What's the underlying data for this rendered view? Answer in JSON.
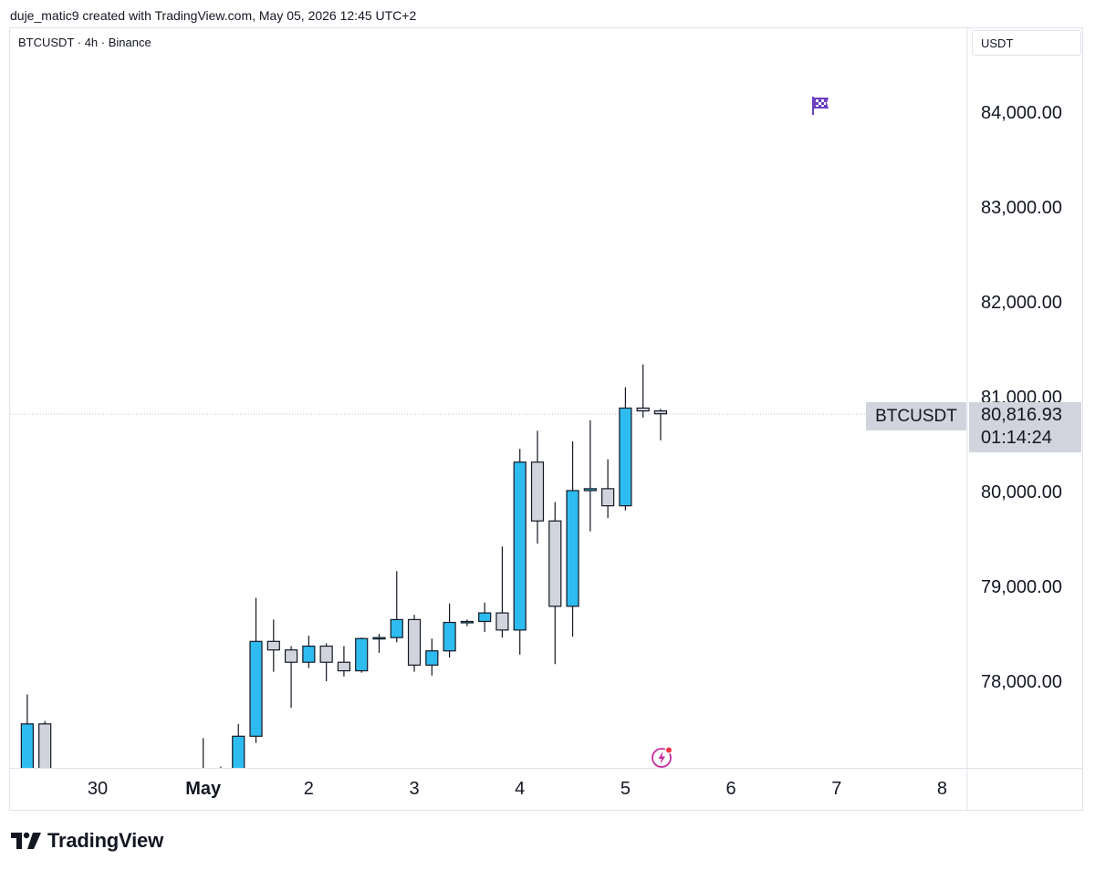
{
  "header": {
    "credit": "duje_matic9 created with TradingView.com, May 05, 2026 12:45 UTC+2"
  },
  "chart": {
    "legend": "BTCUSDT · 4h · Binance",
    "currency": "USDT",
    "series_label": "BTCUSDT",
    "last_price": "80,816.93",
    "countdown": "01:14:24"
  },
  "icons": {
    "flag": "checkered-flag-icon",
    "bolt": "lightning-bolt-icon"
  },
  "colors": {
    "up": "#2ebcf0",
    "down": "#d1d4dc",
    "wick": "#131722",
    "grid": "#e0e3eb",
    "accent_purple": "#6a3fbf",
    "bolt_pink": "#c82ca0",
    "dot_red": "#f23645"
  },
  "brand": {
    "name": "TradingView"
  },
  "chart_data": {
    "type": "candlestick",
    "symbol": "BTCUSDT",
    "interval": "4h",
    "exchange": "Binance",
    "ylim": [
      77050,
      84500
    ],
    "yticks": [
      {
        "value": 78000,
        "label": "78,000.00"
      },
      {
        "value": 79000,
        "label": "79,000.00"
      },
      {
        "value": 80000,
        "label": "80,000.00"
      },
      {
        "value": 81000,
        "label": "81,000.00"
      },
      {
        "value": 82000,
        "label": "82,000.00"
      },
      {
        "value": 83000,
        "label": "83,000.00"
      },
      {
        "value": 84000,
        "label": "84,000.00"
      }
    ],
    "xticks": [
      {
        "t": 0,
        "label": "30",
        "bold": false
      },
      {
        "t": 6,
        "label": "May",
        "bold": true
      },
      {
        "t": 12,
        "label": "2",
        "bold": false
      },
      {
        "t": 18,
        "label": "3",
        "bold": false
      },
      {
        "t": 24,
        "label": "4",
        "bold": false
      },
      {
        "t": 30,
        "label": "5",
        "bold": false
      },
      {
        "t": 36,
        "label": "6",
        "bold": false
      },
      {
        "t": 42,
        "label": "7",
        "bold": false
      },
      {
        "t": 48,
        "label": "8",
        "bold": false
      }
    ],
    "last_price": 80816.93,
    "candles": [
      {
        "t": -4,
        "o": 77050,
        "h": 77860,
        "l": 77050,
        "c": 77550
      },
      {
        "t": -3,
        "o": 77550,
        "h": 77580,
        "l": 77050,
        "c": 77050
      },
      {
        "t": 6,
        "o": 77050,
        "h": 77400,
        "l": 77050,
        "c": 77060
      },
      {
        "t": 7,
        "o": 77050,
        "h": 77100,
        "l": 77050,
        "c": 77060
      },
      {
        "t": 8,
        "o": 77050,
        "h": 77550,
        "l": 77050,
        "c": 77420
      },
      {
        "t": 9,
        "o": 77420,
        "h": 78880,
        "l": 77350,
        "c": 78420
      },
      {
        "t": 10,
        "o": 78420,
        "h": 78650,
        "l": 78100,
        "c": 78330
      },
      {
        "t": 11,
        "o": 78330,
        "h": 78370,
        "l": 77720,
        "c": 78200
      },
      {
        "t": 12,
        "o": 78200,
        "h": 78480,
        "l": 78140,
        "c": 78370
      },
      {
        "t": 13,
        "o": 78370,
        "h": 78400,
        "l": 78000,
        "c": 78200
      },
      {
        "t": 14,
        "o": 78200,
        "h": 78370,
        "l": 78050,
        "c": 78110
      },
      {
        "t": 15,
        "o": 78110,
        "h": 78460,
        "l": 78090,
        "c": 78450
      },
      {
        "t": 16,
        "o": 78450,
        "h": 78500,
        "l": 78300,
        "c": 78460
      },
      {
        "t": 17,
        "o": 78460,
        "h": 79160,
        "l": 78410,
        "c": 78650
      },
      {
        "t": 18,
        "o": 78650,
        "h": 78700,
        "l": 78100,
        "c": 78170
      },
      {
        "t": 19,
        "o": 78170,
        "h": 78450,
        "l": 78060,
        "c": 78320
      },
      {
        "t": 20,
        "o": 78320,
        "h": 78820,
        "l": 78250,
        "c": 78620
      },
      {
        "t": 21,
        "o": 78620,
        "h": 78650,
        "l": 78580,
        "c": 78630
      },
      {
        "t": 22,
        "o": 78630,
        "h": 78830,
        "l": 78520,
        "c": 78720
      },
      {
        "t": 23,
        "o": 78720,
        "h": 79420,
        "l": 78460,
        "c": 78540
      },
      {
        "t": 24,
        "o": 78540,
        "h": 80450,
        "l": 78280,
        "c": 80310
      },
      {
        "t": 25,
        "o": 80310,
        "h": 80640,
        "l": 79450,
        "c": 79690
      },
      {
        "t": 26,
        "o": 79690,
        "h": 79890,
        "l": 78180,
        "c": 78790
      },
      {
        "t": 27,
        "o": 78790,
        "h": 80530,
        "l": 78470,
        "c": 80010
      },
      {
        "t": 28,
        "o": 80010,
        "h": 80750,
        "l": 79580,
        "c": 80030
      },
      {
        "t": 29,
        "o": 80030,
        "h": 80340,
        "l": 79720,
        "c": 79850
      },
      {
        "t": 30,
        "o": 79850,
        "h": 81100,
        "l": 79800,
        "c": 80880
      },
      {
        "t": 31,
        "o": 80880,
        "h": 81340,
        "l": 80780,
        "c": 80850
      },
      {
        "t": 32,
        "o": 80850,
        "h": 80870,
        "l": 80540,
        "c": 80820
      }
    ]
  }
}
